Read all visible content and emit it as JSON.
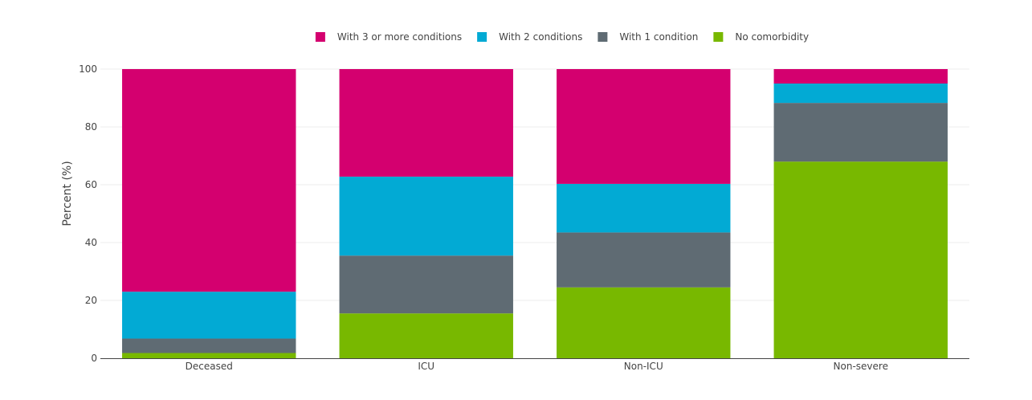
{
  "chart_data": {
    "type": "bar",
    "stacked": true,
    "categories": [
      "Deceased",
      "ICU",
      "Non-ICU",
      "Non-severe"
    ],
    "series": [
      {
        "name": "No comorbidity",
        "color": "#78b800",
        "values": [
          1.8,
          15.5,
          24.5,
          68.0
        ]
      },
      {
        "name": "With 1 condition",
        "color": "#5f6b73",
        "values": [
          5.0,
          20.0,
          19.0,
          20.3
        ]
      },
      {
        "name": "With 2 conditions",
        "color": "#02aad4",
        "values": [
          16.2,
          27.3,
          16.8,
          6.7
        ]
      },
      {
        "name": "With 3 or more conditions",
        "color": "#d4006f",
        "values": [
          77.0,
          37.2,
          39.7,
          5.0
        ]
      }
    ],
    "legend_order": [
      "With 3 or more conditions",
      "With 2 conditions",
      "With 1 condition",
      "No comorbidity"
    ],
    "legend_placement": "top-center",
    "xlabel": "",
    "ylabel": "Percent (%)",
    "ylim": [
      0,
      100
    ],
    "yticks": [
      0,
      20,
      40,
      60,
      80,
      100
    ],
    "grid": true
  }
}
